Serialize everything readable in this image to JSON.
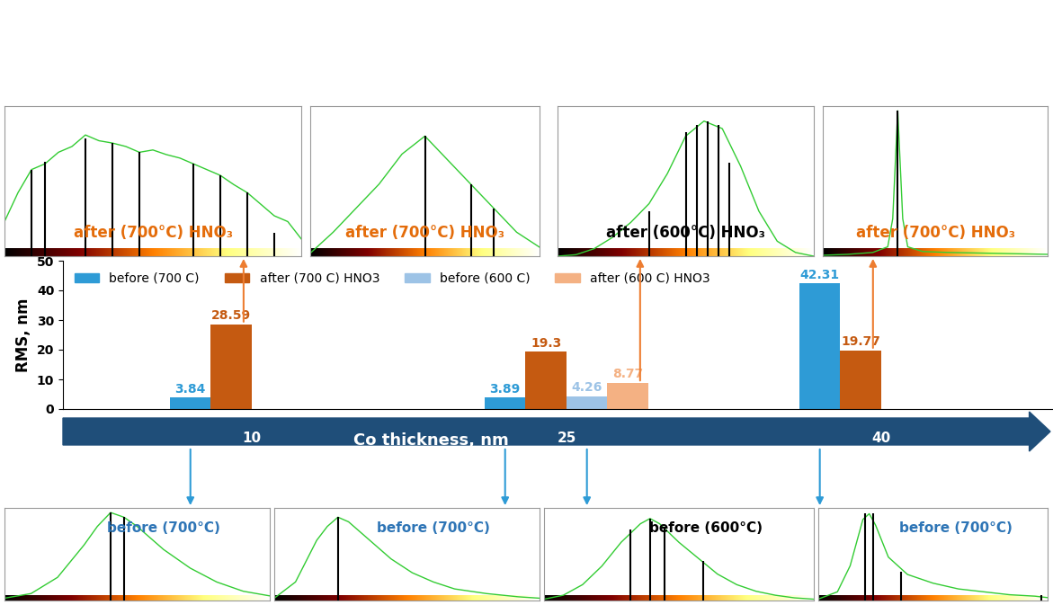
{
  "chart_data": [
    {
      "type": "bar",
      "categories": [
        "10",
        "25",
        "40"
      ],
      "x_label": "Co thickness, nm",
      "y_label": "RMS, nm",
      "series": [
        {
          "name": "before (700 C)",
          "color": "#2E9BD6",
          "values": [
            3.84,
            3.89,
            42.31
          ]
        },
        {
          "name": "after (700 C) HNO3",
          "color": "#C55A11",
          "values": [
            28.59,
            19.3,
            19.77
          ]
        },
        {
          "name": "before (600 C)",
          "color": "#9DC3E6",
          "values": [
            null,
            4.26,
            null
          ]
        },
        {
          "name": "after (600 C) HNO3",
          "color": "#F4B183",
          "values": [
            null,
            8.77,
            null
          ]
        }
      ],
      "ylim": [
        0,
        50
      ],
      "yticks": [
        0,
        10,
        20,
        30,
        40,
        50
      ],
      "grid": false,
      "legend": "upper left",
      "data_labels": true
    },
    {
      "type": "line",
      "title": "after (700°C) HNO₃",
      "color": "#33CC33",
      "tick_labels": false,
      "x": [
        -50,
        -45,
        -40,
        -35,
        -30,
        -25,
        -20,
        -15,
        -10,
        -5,
        0,
        5,
        10,
        15,
        20,
        25,
        30,
        35,
        40,
        45,
        50,
        55,
        60
      ],
      "values": [
        0.3,
        0.55,
        0.75,
        0.8,
        0.9,
        0.95,
        1.05,
        1.0,
        0.98,
        0.95,
        0.9,
        0.92,
        0.88,
        0.85,
        0.8,
        0.75,
        0.7,
        0.62,
        0.55,
        0.45,
        0.35,
        0.3,
        0.15
      ],
      "xlim": [
        -50,
        60
      ],
      "ylim": [
        0,
        1.3
      ],
      "peak_x": [
        -40,
        -35,
        -20,
        -10,
        0,
        20,
        30,
        40,
        50
      ],
      "peak_height": [
        0.75,
        0.82,
        1.02,
        0.98,
        0.9,
        0.8,
        0.7,
        0.55,
        0.2
      ]
    },
    {
      "type": "line",
      "title": "after (700°C) HNO₃",
      "color": "#33CC33",
      "tick_labels": false,
      "x": [
        -50,
        -40,
        -30,
        -20,
        -10,
        0,
        10,
        20,
        30,
        40,
        50
      ],
      "values": [
        0.05,
        0.4,
        0.8,
        1.2,
        1.7,
        2.0,
        1.6,
        1.2,
        0.8,
        0.4,
        0.15
      ],
      "xlim": [
        -50,
        50
      ],
      "ylim": [
        0,
        2.5
      ],
      "peak_x": [
        0,
        20,
        30
      ],
      "peak_height": [
        2.0,
        1.2,
        0.8
      ]
    },
    {
      "type": "line",
      "title": "after (600°C) HNO₃",
      "color": "#33CC33",
      "tick_labels": false,
      "x": [
        -35,
        -30,
        -25,
        -20,
        -15,
        -10,
        -5,
        0,
        5,
        10,
        15,
        20,
        25,
        30,
        35
      ],
      "values": [
        0.0,
        0.02,
        0.1,
        0.25,
        0.45,
        0.7,
        1.1,
        1.6,
        1.8,
        1.7,
        1.2,
        0.6,
        0.2,
        0.05,
        0.0
      ],
      "xlim": [
        -35,
        35
      ],
      "ylim": [
        0,
        2.0
      ],
      "peak_x": [
        -10,
        0,
        3,
        6,
        9,
        12
      ],
      "peak_height": [
        0.6,
        1.65,
        1.75,
        1.8,
        1.75,
        1.25
      ]
    },
    {
      "type": "line",
      "title": "after (700°C) HNO₃",
      "color": "#33CC33",
      "tick_labels": false,
      "x": [
        -30,
        -20,
        -10,
        -4,
        -2,
        0,
        2,
        4,
        10,
        20,
        40,
        60
      ],
      "values": [
        0.1,
        0.2,
        0.4,
        1.0,
        4,
        15.5,
        4,
        1.0,
        0.5,
        0.4,
        0.3,
        0.2
      ],
      "xlim": [
        -30,
        60
      ],
      "ylim": [
        0,
        16
      ],
      "peak_x": [
        0
      ],
      "peak_height": [
        15.5
      ]
    },
    {
      "type": "line",
      "title": "before (700°C)",
      "color": "#33CC33",
      "tick_labels": false,
      "x": [
        -8,
        -6,
        -4,
        -2,
        -1,
        0,
        1,
        2,
        4,
        6,
        8,
        10,
        12
      ],
      "values": [
        0.05,
        0.15,
        0.5,
        1.2,
        1.6,
        1.9,
        1.8,
        1.6,
        1.1,
        0.7,
        0.4,
        0.2,
        0.1
      ],
      "xlim": [
        -8,
        12
      ],
      "ylim": [
        0,
        2.0
      ],
      "peak_x": [
        0,
        1
      ],
      "peak_height": [
        1.9,
        1.8
      ]
    },
    {
      "type": "line",
      "title": "before (700°C)",
      "color": "#33CC33",
      "tick_labels": false,
      "x": [
        -5,
        -3,
        -1,
        0,
        1,
        2,
        4,
        6,
        8,
        10,
        12,
        15,
        18,
        20
      ],
      "values": [
        0.05,
        0.4,
        1.3,
        1.6,
        1.8,
        1.7,
        1.3,
        0.9,
        0.6,
        0.4,
        0.25,
        0.15,
        0.08,
        0.05
      ],
      "xlim": [
        -5,
        20
      ],
      "ylim": [
        0,
        2.0
      ],
      "peak_x": [
        1
      ],
      "peak_height": [
        1.8
      ]
    },
    {
      "type": "line",
      "title": "before (600°C)",
      "color": "#33CC33",
      "tick_labels": false,
      "x": [
        -10,
        -8,
        -6,
        -4,
        -2,
        0,
        1,
        2,
        4,
        6,
        8,
        10,
        12,
        14,
        16,
        18
      ],
      "values": [
        0.05,
        0.2,
        0.6,
        1.3,
        2.2,
        2.9,
        3.1,
        2.9,
        2.2,
        1.6,
        1.0,
        0.6,
        0.35,
        0.2,
        0.1,
        0.05
      ],
      "xlim": [
        -10,
        18
      ],
      "ylim": [
        0,
        3.5
      ],
      "peak_x": [
        -1,
        1,
        2.5,
        6.5
      ],
      "peak_height": [
        2.7,
        3.1,
        2.8,
        1.5
      ]
    },
    {
      "type": "line",
      "title": "before (700°C)",
      "color": "#33CC33",
      "tick_labels": false,
      "x": [
        -40,
        -25,
        -15,
        -5,
        0,
        5,
        15,
        30,
        50,
        70,
        90,
        110,
        130,
        140
      ],
      "values": [
        0.05,
        0.3,
        1.2,
        2.8,
        3.0,
        2.6,
        1.5,
        0.9,
        0.6,
        0.4,
        0.3,
        0.2,
        0.15,
        0.1
      ],
      "xlim": [
        -40,
        140
      ],
      "ylim": [
        0,
        3.2
      ],
      "peak_x": [
        -3,
        3,
        25,
        135
      ],
      "peak_height": [
        3.0,
        3.0,
        1.0,
        0.2
      ]
    }
  ]
}
